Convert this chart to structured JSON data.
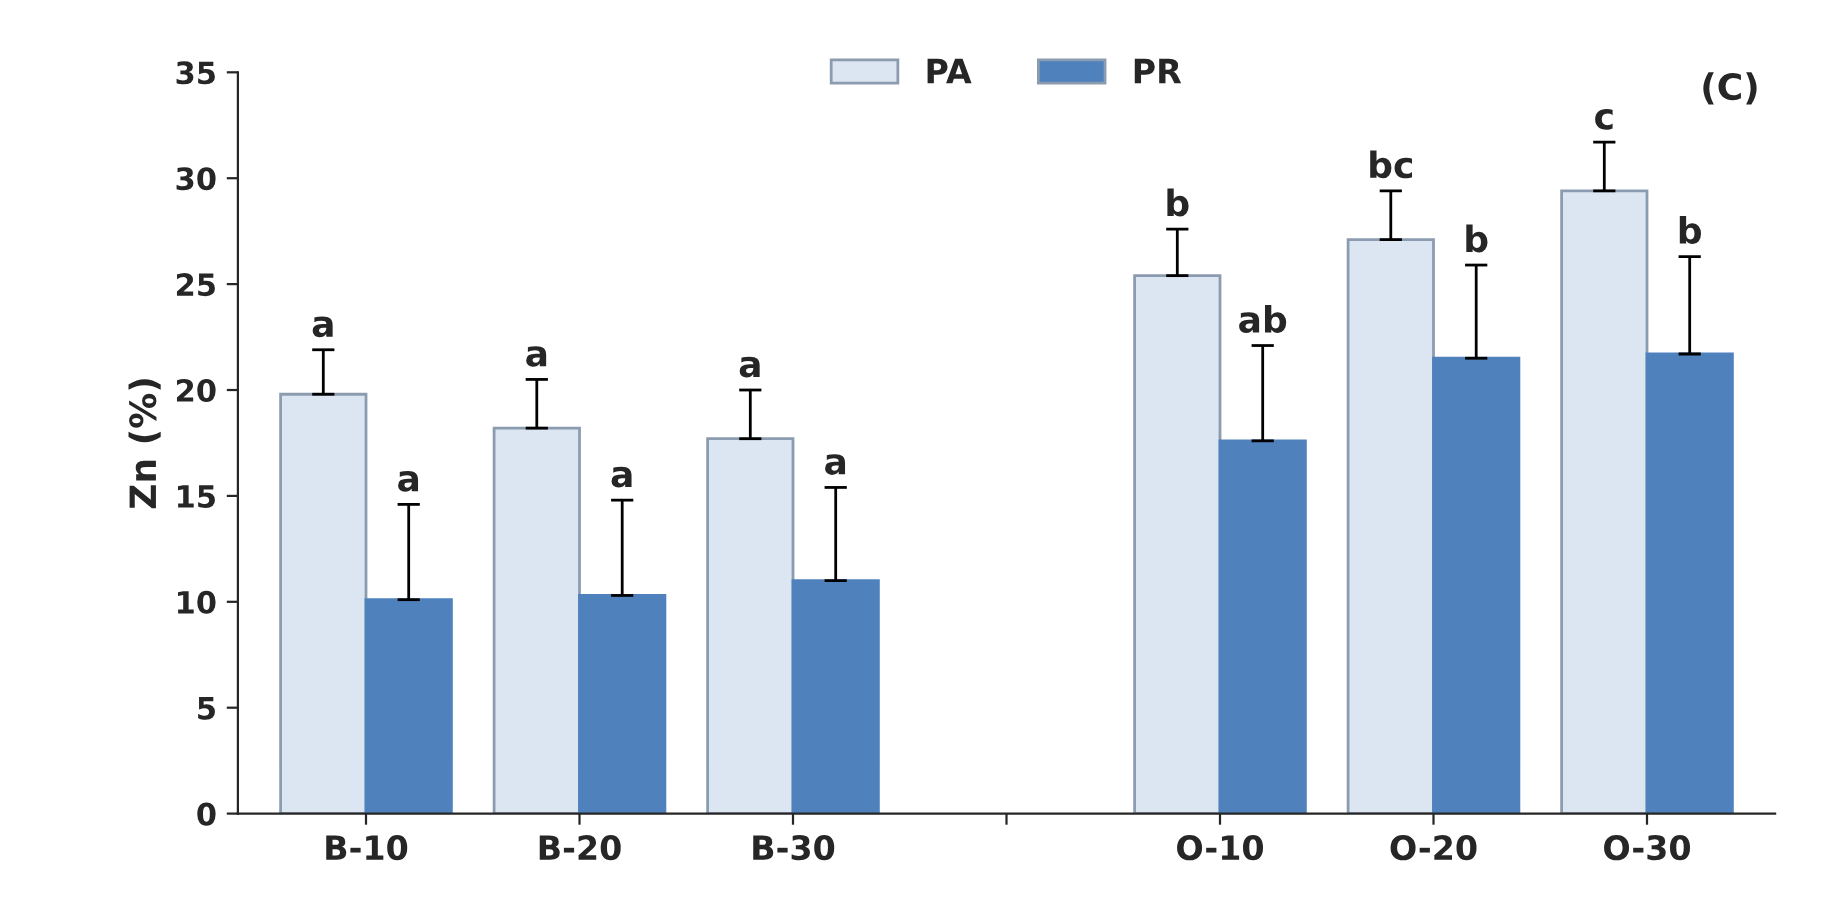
{
  "chart_data": {
    "type": "bar",
    "ylabel": "Zn (%)",
    "categories": [
      "B-10",
      "B-20",
      "B-30",
      null,
      "O-10",
      "O-20",
      "O-30"
    ],
    "series": [
      {
        "name": "PA",
        "color": "#dce6f2",
        "values": [
          19.8,
          18.2,
          17.7,
          null,
          25.4,
          27.1,
          29.4
        ],
        "errors": [
          2.1,
          2.3,
          2.3,
          null,
          2.2,
          2.3,
          2.3
        ],
        "value_labels": [
          "a",
          "a",
          "a",
          null,
          "b",
          "bc",
          "c"
        ]
      },
      {
        "name": "PR",
        "color": "#4f81bd",
        "values": [
          10.1,
          10.3,
          11.0,
          null,
          17.6,
          21.5,
          21.7
        ],
        "errors": [
          4.5,
          4.5,
          4.4,
          null,
          4.5,
          4.4,
          4.6
        ],
        "value_labels": [
          "a",
          "a",
          "a",
          null,
          "ab",
          "b",
          "b"
        ]
      }
    ],
    "ylim": [
      0,
      35
    ],
    "yticks": [
      0,
      5,
      10,
      15,
      20,
      25,
      30,
      35
    ],
    "annotations": [
      "(C)"
    ],
    "legend": "top",
    "grid": false
  }
}
